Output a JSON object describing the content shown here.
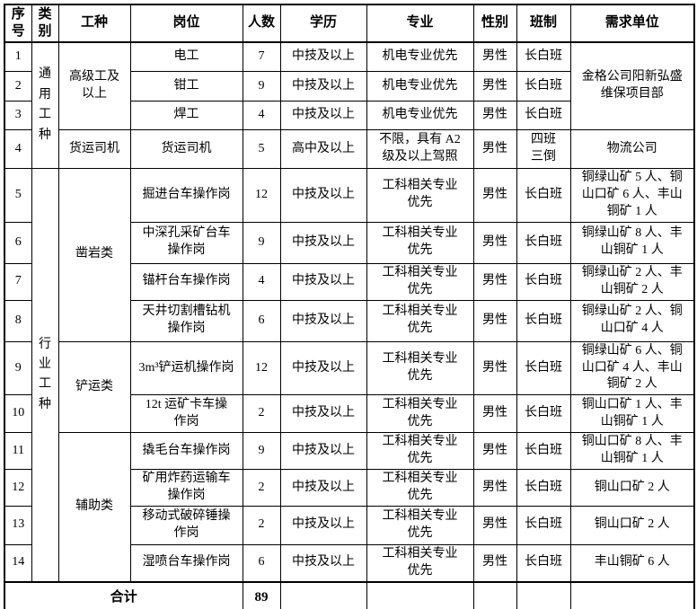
{
  "page": {
    "background": "#ffffff",
    "border_color": "#000000",
    "text_color": "#000000"
  },
  "table": {
    "column_keys": [
      "serial",
      "category",
      "trade",
      "position",
      "count",
      "education",
      "major",
      "gender",
      "shift",
      "unit"
    ],
    "headers": [
      "序号",
      "类别",
      "工种",
      "岗位",
      "人数",
      "学历",
      "专业",
      "性别",
      "班制",
      "需求单位"
    ],
    "rows": [
      {
        "cells": [
          {
            "t": "1"
          },
          {
            "t": "通用工种",
            "rs": 4,
            "vertical": true
          },
          {
            "t": "高级工及\n以上",
            "rs": 3
          },
          {
            "t": "电工"
          },
          {
            "t": "7"
          },
          {
            "t": "中技及以上"
          },
          {
            "t": "机电专业优先"
          },
          {
            "t": "男性"
          },
          {
            "t": "长白班"
          },
          {
            "t": "金格公司阳新弘盛\n维保项目部",
            "rs": 3
          }
        ]
      },
      {
        "cells": [
          {
            "t": "2"
          },
          {
            "t": "钳工"
          },
          {
            "t": "9"
          },
          {
            "t": "中技及以上"
          },
          {
            "t": "机电专业优先"
          },
          {
            "t": "男性"
          },
          {
            "t": "长白班"
          }
        ]
      },
      {
        "cells": [
          {
            "t": "3"
          },
          {
            "t": "焊工"
          },
          {
            "t": "4"
          },
          {
            "t": "中技及以上"
          },
          {
            "t": "机电专业优先"
          },
          {
            "t": "男性"
          },
          {
            "t": "长白班"
          }
        ]
      },
      {
        "cells": [
          {
            "t": "4"
          },
          {
            "t": "货运司机"
          },
          {
            "t": "货运司机"
          },
          {
            "t": "5"
          },
          {
            "t": "高中及以上"
          },
          {
            "t": "不限，具有 A2\n级及以上驾照"
          },
          {
            "t": "男性"
          },
          {
            "t": "四班\n三倒"
          },
          {
            "t": "物流公司"
          }
        ]
      },
      {
        "cells": [
          {
            "t": "5"
          },
          {
            "t": "行业工种",
            "rs": 10,
            "vertical": true
          },
          {
            "t": "凿岩类",
            "rs": 4
          },
          {
            "t": "掘进台车操作岗"
          },
          {
            "t": "12"
          },
          {
            "t": "中技及以上"
          },
          {
            "t": "工科相关专业\n优先"
          },
          {
            "t": "男性"
          },
          {
            "t": "长白班"
          },
          {
            "t": "铜绿山矿 5 人、铜\n山口矿 6 人、丰山\n铜矿 1 人"
          }
        ]
      },
      {
        "cells": [
          {
            "t": "6"
          },
          {
            "t": "中深孔采矿台车\n操作岗"
          },
          {
            "t": "9"
          },
          {
            "t": "中技及以上"
          },
          {
            "t": "工科相关专业\n优先"
          },
          {
            "t": "男性"
          },
          {
            "t": "长白班"
          },
          {
            "t": "铜绿山矿 8 人、丰\n山铜矿 1 人"
          }
        ]
      },
      {
        "cells": [
          {
            "t": "7"
          },
          {
            "t": "锚杆台车操作岗"
          },
          {
            "t": "4"
          },
          {
            "t": "中技及以上"
          },
          {
            "t": "工科相关专业\n优先"
          },
          {
            "t": "男性"
          },
          {
            "t": "长白班"
          },
          {
            "t": "铜绿山矿 2 人、丰\n山铜矿 2 人"
          }
        ]
      },
      {
        "cells": [
          {
            "t": "8"
          },
          {
            "t": "天井切割槽钻机\n操作岗"
          },
          {
            "t": "6"
          },
          {
            "t": "中技及以上"
          },
          {
            "t": "工科相关专业\n优先"
          },
          {
            "t": "男性"
          },
          {
            "t": "长白班"
          },
          {
            "t": "铜绿山矿 2 人、铜\n山口矿 4 人"
          }
        ]
      },
      {
        "cells": [
          {
            "t": "9"
          },
          {
            "t": "铲运类",
            "rs": 2
          },
          {
            "t": "3m³铲运机操作岗"
          },
          {
            "t": "12"
          },
          {
            "t": "中技及以上"
          },
          {
            "t": "工科相关专业\n优先"
          },
          {
            "t": "男性"
          },
          {
            "t": "长白班"
          },
          {
            "t": "铜绿山矿 6 人、铜\n山口矿 4 人、丰山\n铜矿 2 人"
          }
        ]
      },
      {
        "cells": [
          {
            "t": "10"
          },
          {
            "t": "12t 运矿卡车操\n作岗"
          },
          {
            "t": "2"
          },
          {
            "t": "中技及以上"
          },
          {
            "t": "工科相关专业\n优先"
          },
          {
            "t": "男性"
          },
          {
            "t": "长白班"
          },
          {
            "t": "铜山口矿 1 人、丰\n山铜矿 1 人"
          }
        ]
      },
      {
        "cells": [
          {
            "t": "11"
          },
          {
            "t": "辅助类",
            "rs": 4
          },
          {
            "t": "撬毛台车操作岗"
          },
          {
            "t": "9"
          },
          {
            "t": "中技及以上"
          },
          {
            "t": "工科相关专业\n优先"
          },
          {
            "t": "男性"
          },
          {
            "t": "长白班"
          },
          {
            "t": "铜山口矿 8 人、丰\n山铜矿 1 人"
          }
        ]
      },
      {
        "cells": [
          {
            "t": "12"
          },
          {
            "t": "矿用炸药运输车\n操作岗"
          },
          {
            "t": "2"
          },
          {
            "t": "中技及以上"
          },
          {
            "t": "工科相关专业\n优先"
          },
          {
            "t": "男性"
          },
          {
            "t": "长白班"
          },
          {
            "t": "铜山口矿 2 人"
          }
        ]
      },
      {
        "cells": [
          {
            "t": "13"
          },
          {
            "t": "移动式破碎锤操\n作岗"
          },
          {
            "t": "2"
          },
          {
            "t": "中技及以上"
          },
          {
            "t": "工科相关专业\n优先"
          },
          {
            "t": "男性"
          },
          {
            "t": "长白班"
          },
          {
            "t": "铜山口矿 2 人"
          }
        ]
      },
      {
        "cells": [
          {
            "t": "14"
          },
          {
            "t": "湿喷台车操作岗"
          },
          {
            "t": "6"
          },
          {
            "t": "中技及以上"
          },
          {
            "t": "工科相关专业\n优先"
          },
          {
            "t": "男性"
          },
          {
            "t": "长白班"
          },
          {
            "t": "丰山铜矿 6 人"
          }
        ]
      },
      {
        "total": true,
        "cells": [
          {
            "t": "合计",
            "cs": 4
          },
          {
            "t": "89"
          },
          {
            "t": ""
          },
          {
            "t": ""
          },
          {
            "t": ""
          },
          {
            "t": ""
          },
          {
            "t": ""
          }
        ]
      }
    ]
  }
}
